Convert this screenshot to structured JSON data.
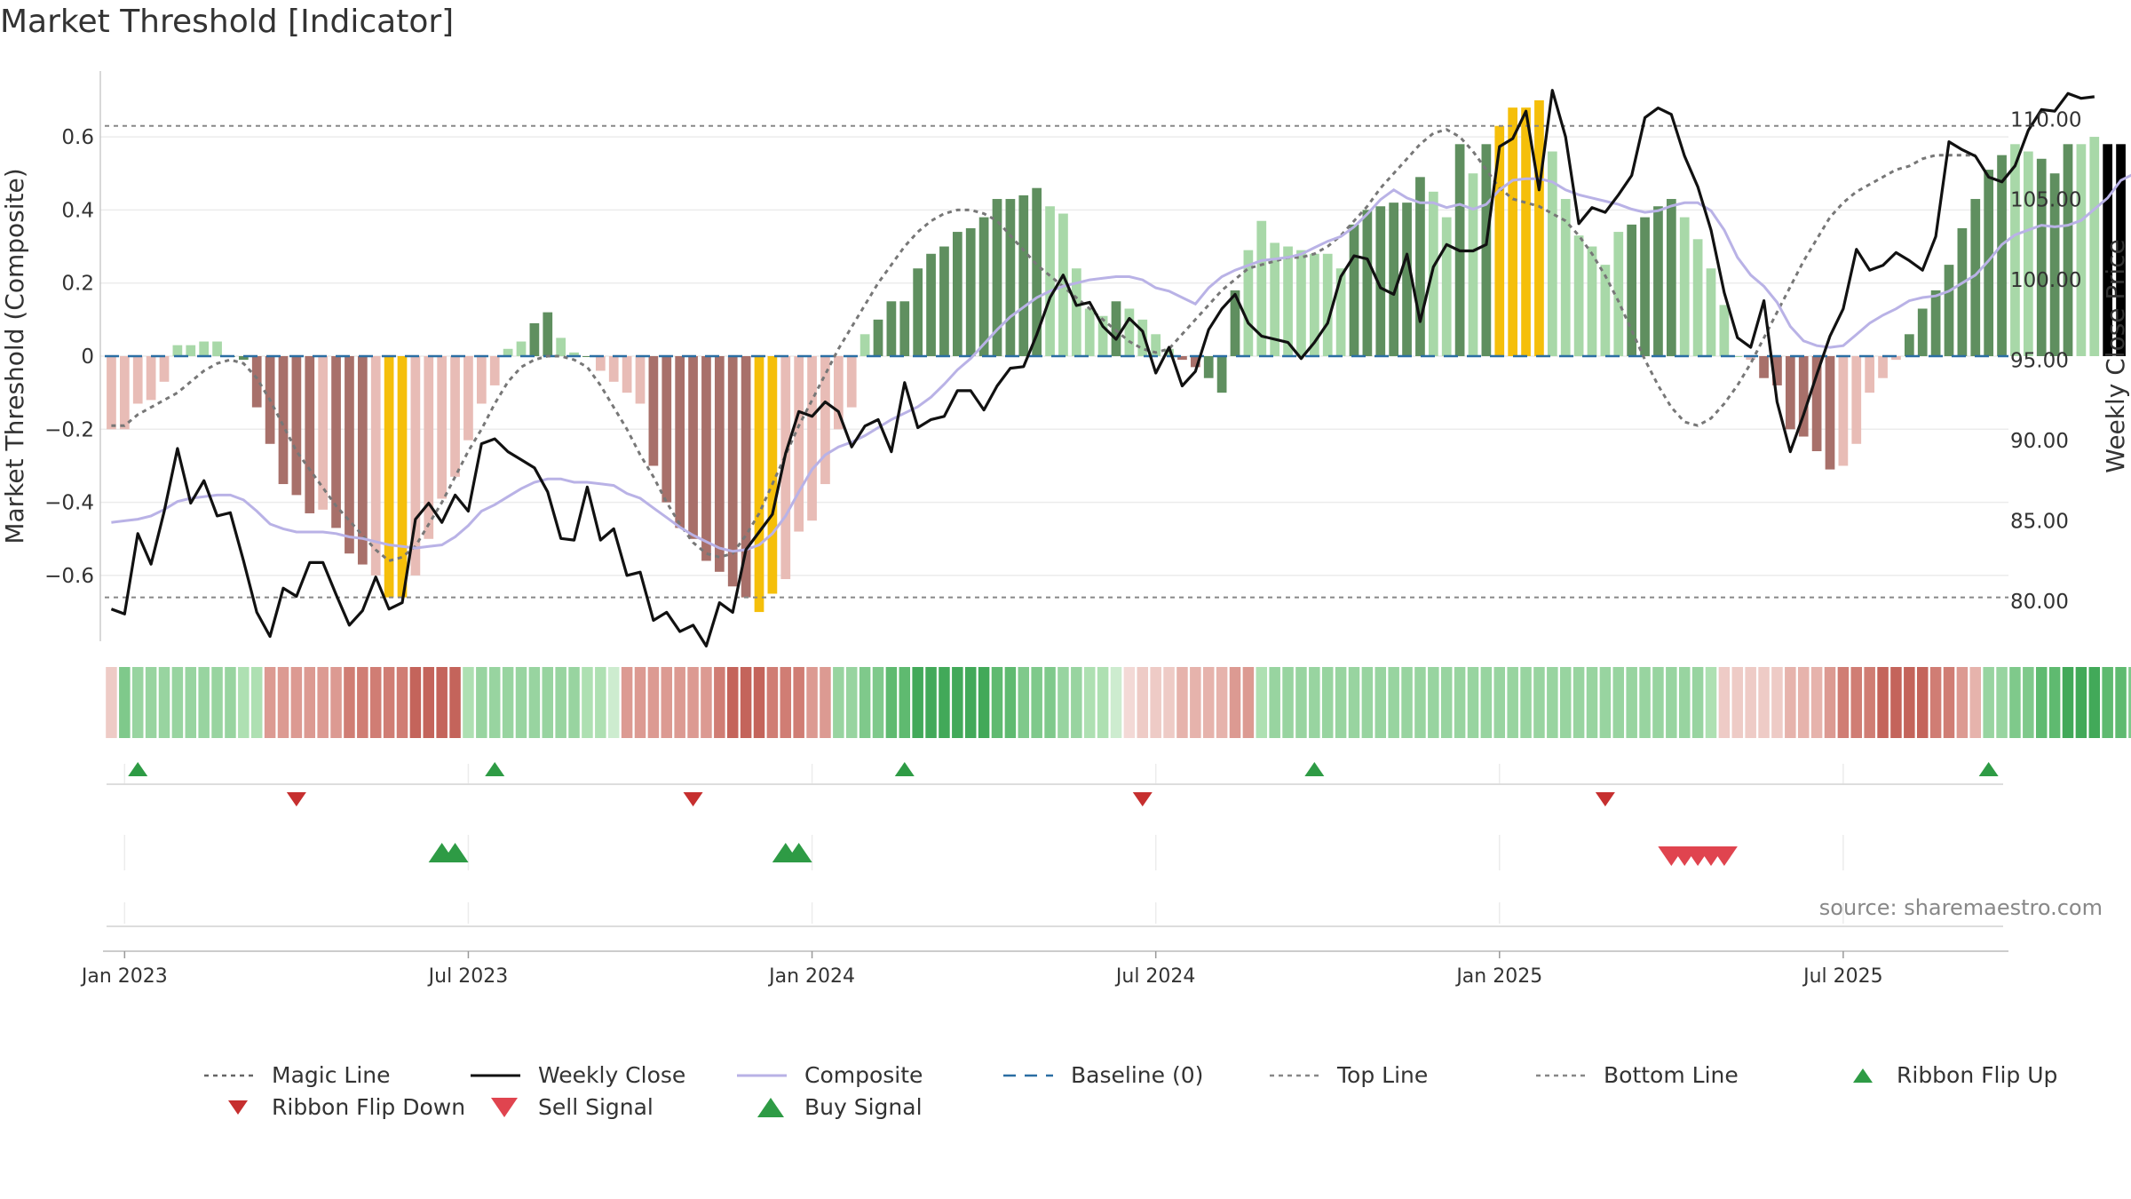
{
  "title": "Market Threshold [Indicator]",
  "source": "source: sharemaestro.com",
  "colors": {
    "bar_dark_green": "#5f8f5f",
    "bar_light_green": "#a8d8a8",
    "bar_dark_red": "#a8706a",
    "bar_light_red": "#e8bcb6",
    "bar_gold": "#f5bf0a",
    "close_line": "#111111",
    "composite_line": "#b9b2e6",
    "magic_line": "#777777",
    "baseline": "#2b6ea3",
    "threshold_line": "#888888",
    "buy": "#2e9b45",
    "sell": "#d63a3a"
  },
  "chart_data": {
    "type": "bar",
    "ylabel_left": "Market Threshold (Composite)",
    "ylabel_right": "Weekly Close Price",
    "left_ylim": [
      -0.78,
      0.78
    ],
    "right_ylim": [
      77.5,
      113
    ],
    "left_ticks": [
      "0.6",
      "0.4",
      "0.2",
      "0",
      "−0.2",
      "−0.4",
      "−0.6"
    ],
    "left_tick_values": [
      0.6,
      0.4,
      0.2,
      0,
      -0.2,
      -0.4,
      -0.6
    ],
    "right_ticks": [
      "110.00",
      "105.00",
      "100.00",
      "95.00",
      "90.00",
      "85.00",
      "80.00"
    ],
    "right_tick_values": [
      110,
      105,
      100,
      95,
      90,
      85,
      80
    ],
    "x_ticks": [
      "Jan 2023",
      "Jul 2023",
      "Jan 2024",
      "Jul 2024",
      "Jan 2025",
      "Jul 2025"
    ],
    "x_tick_weeks": [
      1.5,
      27.5,
      53.5,
      79.5,
      105.5,
      131.5
    ],
    "top_line": 0.63,
    "bottom_line": -0.66,
    "weeks": 144,
    "composite_bars": [
      -0.2,
      -0.2,
      -0.13,
      -0.12,
      -0.07,
      0.03,
      0.03,
      0.04,
      0.04,
      0,
      -0.01,
      -0.14,
      -0.24,
      -0.35,
      -0.38,
      -0.43,
      -0.42,
      -0.47,
      -0.54,
      -0.57,
      -0.6,
      -0.66,
      -0.66,
      -0.6,
      -0.5,
      -0.39,
      -0.33,
      -0.23,
      -0.13,
      -0.08,
      0.02,
      0.04,
      0.09,
      0.12,
      0.05,
      0.01,
      0,
      -0.04,
      -0.07,
      -0.1,
      -0.13,
      -0.3,
      -0.4,
      -0.47,
      -0.5,
      -0.56,
      -0.59,
      -0.63,
      -0.66,
      -0.7,
      -0.65,
      -0.61,
      -0.48,
      -0.45,
      -0.35,
      -0.2,
      -0.14,
      0.06,
      0.1,
      0.15,
      0.15,
      0.24,
      0.28,
      0.3,
      0.34,
      0.35,
      0.38,
      0.43,
      0.43,
      0.44,
      0.46,
      0.41,
      0.39,
      0.24,
      0.13,
      0.11,
      0.15,
      0.13,
      0.1,
      0.06,
      0.02,
      -0.01,
      -0.03,
      -0.06,
      -0.1,
      0.18,
      0.29,
      0.37,
      0.31,
      0.3,
      0.29,
      0.28,
      0.28,
      0.24,
      0.36,
      0.4,
      0.41,
      0.42,
      0.42,
      0.49,
      0.45,
      0.38,
      0.58,
      0.5,
      0.58,
      0.63,
      0.68,
      0.68,
      0.7,
      0.56,
      0.43,
      0.33,
      0.3,
      0.25,
      0.34,
      0.36,
      0.38,
      0.41,
      0.43,
      0.38,
      0.32,
      0.24,
      0.14,
      0,
      -0.01,
      -0.06,
      -0.08,
      -0.2,
      -0.22,
      -0.26,
      -0.31,
      -0.3,
      -0.24,
      -0.1,
      -0.06,
      -0.01,
      0.06,
      0.13,
      0.18,
      0.25,
      0.35,
      0.43,
      0.51,
      0.55,
      0.58,
      0.56,
      0.54,
      0.5,
      0.58,
      0.58,
      0.6,
      0.58,
      0.58
    ],
    "bar_styles": [
      "lr",
      "lr",
      "lr",
      "lr",
      "lr",
      "lg",
      "lg",
      "lg",
      "lg",
      "dg",
      "dg",
      "dr",
      "dr",
      "dr",
      "dr",
      "dr",
      "lr",
      "dr",
      "dr",
      "dr",
      "lr",
      "au",
      "au",
      "lr",
      "lr",
      "lr",
      "lr",
      "lr",
      "lr",
      "lr",
      "lg",
      "lg",
      "dg",
      "dg",
      "lg",
      "lg",
      "dg",
      "lr",
      "lr",
      "lr",
      "lr",
      "dr",
      "dr",
      "dr",
      "dr",
      "dr",
      "dr",
      "dr",
      "dr",
      "au",
      "au",
      "lr",
      "lr",
      "lr",
      "lr",
      "lr",
      "lr",
      "lg",
      "dg",
      "dg",
      "dg",
      "dg",
      "dg",
      "dg",
      "dg",
      "dg",
      "dg",
      "dg",
      "dg",
      "dg",
      "dg",
      "lg",
      "lg",
      "lg",
      "lg",
      "lg",
      "dg",
      "lg",
      "lg",
      "lg",
      "lg",
      "dr",
      "dr",
      "dg",
      "dg",
      "dg",
      "lg",
      "lg",
      "lg",
      "lg",
      "lg",
      "lg",
      "lg",
      "lg",
      "dg",
      "dg",
      "dg",
      "dg",
      "dg",
      "dg",
      "lg",
      "lg",
      "dg",
      "lg",
      "dg",
      "au",
      "au",
      "au",
      "au",
      "lg",
      "lg",
      "lg",
      "lg",
      "lg",
      "lg",
      "dg",
      "dg",
      "dg",
      "dg",
      "lg",
      "lg",
      "lg",
      "lg",
      "lg",
      "lr",
      "dr",
      "dr",
      "dr",
      "dr",
      "dr",
      "dr",
      "lr",
      "lr",
      "lr",
      "lr",
      "lr",
      "dg",
      "dg",
      "dg",
      "dg",
      "dg",
      "dg",
      "dg",
      "dg",
      "lg",
      "lg",
      "dg",
      "dg",
      "dg",
      "lg",
      "lg"
    ],
    "weekly_close": [
      79.5,
      79.2,
      84.2,
      82.3,
      85.6,
      89.5,
      86.1,
      87.5,
      85.3,
      85.5,
      82.5,
      79.3,
      77.8,
      80.8,
      80.3,
      82.4,
      82.4,
      80.4,
      78.5,
      79.4,
      81.5,
      79.5,
      79.9,
      85.1,
      86.1,
      84.9,
      86.6,
      85.6,
      89.8,
      90.1,
      89.3,
      88.8,
      88.3,
      86.8,
      83.9,
      83.8,
      87.1,
      83.8,
      84.5,
      81.6,
      81.8,
      78.8,
      79.3,
      78.1,
      78.5,
      77.2,
      79.9,
      79.3,
      83.2,
      84.3,
      85.4,
      89.2,
      91.8,
      91.5,
      92.4,
      91.8,
      89.6,
      90.9,
      91.3,
      89.3,
      93.6,
      90.8,
      91.3,
      91.5,
      93.1,
      93.1,
      91.9,
      93.4,
      94.5,
      94.6,
      96.6,
      98.9,
      100.3,
      98.4,
      98.6,
      97.1,
      96.3,
      97.6,
      96.8,
      94.2,
      95.8,
      93.4,
      94.3,
      96.9,
      98.2,
      99.1,
      97.3,
      96.5,
      96.3,
      96.1,
      95.1,
      96.1,
      97.3,
      100.2,
      101.5,
      101.3,
      99.5,
      99.1,
      101.6,
      97.4,
      100.8,
      102.2,
      101.8,
      101.8,
      102.2,
      108.3,
      108.8,
      110.5,
      105.6,
      111.8,
      108.9,
      103.5,
      104.5,
      104.2,
      105.3,
      106.5,
      110.1,
      110.7,
      110.3,
      107.7,
      105.8,
      103.1,
      99.2,
      96.4,
      95.8,
      98.7,
      92.4,
      89.3,
      91.6,
      94.1,
      96.5,
      98.2,
      101.9,
      100.6,
      100.9,
      101.7,
      101.2,
      100.6,
      102.7,
      108.6,
      108.1,
      107.7,
      106.4,
      106.1,
      107.1,
      109.3,
      110.6,
      110.5,
      111.6,
      111.3,
      111.4
    ],
    "composite_line": [
      84.9,
      85.0,
      85.1,
      85.3,
      85.7,
      86.2,
      86.4,
      86.5,
      86.6,
      86.6,
      86.3,
      85.6,
      84.8,
      84.5,
      84.3,
      84.3,
      84.3,
      84.2,
      84.0,
      83.9,
      83.7,
      83.5,
      83.4,
      83.3,
      83.4,
      83.5,
      84.0,
      84.7,
      85.6,
      86.0,
      86.5,
      87.0,
      87.4,
      87.6,
      87.6,
      87.4,
      87.4,
      87.3,
      87.2,
      86.7,
      86.4,
      85.8,
      85.2,
      84.6,
      84.1,
      83.7,
      83.3,
      83.1,
      83.2,
      83.5,
      84.2,
      85.3,
      86.8,
      88.2,
      89.1,
      89.6,
      89.9,
      90.3,
      90.8,
      91.3,
      91.7,
      92.1,
      92.7,
      93.5,
      94.4,
      95.1,
      96.0,
      96.9,
      97.7,
      98.3,
      98.9,
      99.3,
      99.6,
      99.8,
      100.0,
      100.1,
      100.2,
      100.2,
      100.0,
      99.5,
      99.3,
      98.9,
      98.5,
      99.5,
      100.2,
      100.6,
      100.9,
      101.2,
      101.3,
      101.4,
      101.6,
      102.0,
      102.4,
      102.7,
      103.3,
      104.1,
      105.0,
      105.6,
      105.1,
      104.8,
      104.8,
      104.5,
      104.7,
      104.4,
      104.7,
      105.6,
      106.2,
      106.3,
      106.3,
      106.1,
      105.6,
      105.3,
      105.1,
      104.9,
      104.7,
      104.4,
      104.2,
      104.3,
      104.6,
      104.8,
      104.8,
      104.3,
      103.1,
      101.4,
      100.3,
      99.6,
      98.6,
      97.1,
      96.2,
      95.9,
      95.8,
      95.9,
      96.6,
      97.3,
      97.8,
      98.2,
      98.7,
      98.9,
      99.0,
      99.3,
      99.8,
      100.3,
      101.2,
      102.2,
      102.8,
      103.1,
      103.4,
      103.3,
      103.4,
      103.7,
      104.4,
      105.1,
      106.2,
      106.6
    ],
    "magic_line": [
      -0.19,
      -0.19,
      -0.16,
      -0.14,
      -0.12,
      -0.1,
      -0.07,
      -0.04,
      -0.02,
      -0.01,
      -0.02,
      -0.06,
      -0.12,
      -0.19,
      -0.26,
      -0.31,
      -0.36,
      -0.41,
      -0.45,
      -0.49,
      -0.53,
      -0.56,
      -0.55,
      -0.52,
      -0.46,
      -0.4,
      -0.33,
      -0.26,
      -0.2,
      -0.13,
      -0.07,
      -0.03,
      -0.01,
      0,
      0,
      -0.01,
      -0.03,
      -0.08,
      -0.14,
      -0.2,
      -0.27,
      -0.33,
      -0.4,
      -0.46,
      -0.51,
      -0.54,
      -0.55,
      -0.54,
      -0.49,
      -0.43,
      -0.35,
      -0.27,
      -0.19,
      -0.12,
      -0.05,
      0.02,
      0.08,
      0.14,
      0.2,
      0.25,
      0.3,
      0.34,
      0.37,
      0.39,
      0.4,
      0.4,
      0.39,
      0.37,
      0.33,
      0.29,
      0.25,
      0.22,
      0.19,
      0.16,
      0.13,
      0.1,
      0.07,
      0.04,
      0.02,
      0.01,
      0.02,
      0.06,
      0.1,
      0.14,
      0.18,
      0.21,
      0.24,
      0.25,
      0.26,
      0.27,
      0.27,
      0.28,
      0.3,
      0.33,
      0.37,
      0.41,
      0.46,
      0.5,
      0.54,
      0.58,
      0.61,
      0.62,
      0.6,
      0.56,
      0.51,
      0.46,
      0.43,
      0.42,
      0.41,
      0.39,
      0.37,
      0.33,
      0.28,
      0.22,
      0.15,
      0.07,
      -0.01,
      -0.08,
      -0.14,
      -0.18,
      -0.19,
      -0.17,
      -0.13,
      -0.08,
      -0.02,
      0.05,
      0.12,
      0.19,
      0.26,
      0.32,
      0.38,
      0.42,
      0.45,
      0.47,
      0.49,
      0.51,
      0.52,
      0.54,
      0.55,
      0.55,
      0.55,
      0.55
    ]
  },
  "ribbon": {
    "styles": [
      "r2",
      "g4",
      "g3",
      "g3",
      "g3",
      "g3",
      "g3",
      "g3",
      "g3",
      "g3",
      "g2",
      "g2",
      "r4",
      "r4",
      "r4",
      "r4",
      "r4",
      "r4",
      "r5",
      "r5",
      "r5",
      "r5",
      "r5",
      "r6",
      "r6",
      "r6",
      "r6",
      "g2",
      "g3",
      "g3",
      "g3",
      "g3",
      "g3",
      "g3",
      "g3",
      "g3",
      "g2",
      "g2",
      "g1",
      "r4",
      "r4",
      "r4",
      "r4",
      "r4",
      "r4",
      "r4",
      "r5",
      "r6",
      "r6",
      "r6",
      "r5",
      "r5",
      "r5",
      "r4",
      "r4",
      "g3",
      "g3",
      "g4",
      "g4",
      "g5",
      "g5",
      "g6",
      "g6",
      "g6",
      "g6",
      "g6",
      "g6",
      "g5",
      "g5",
      "g4",
      "g4",
      "g4",
      "g3",
      "g3",
      "g2",
      "g2",
      "g1",
      "r1",
      "r2",
      "r2",
      "r2",
      "r3",
      "r3",
      "r3",
      "r3",
      "r4",
      "r4",
      "g2",
      "g3",
      "g3",
      "g3",
      "g3",
      "g3",
      "g3",
      "g3",
      "g3",
      "g3",
      "g3",
      "g3",
      "g3",
      "g3",
      "g3",
      "g3",
      "g3",
      "g3",
      "g3",
      "g3",
      "g3",
      "g3",
      "g3",
      "g3",
      "g3",
      "g3",
      "g3",
      "g3",
      "g3",
      "g3",
      "g3",
      "g3",
      "g3",
      "g3",
      "g2",
      "r2",
      "r2",
      "r2",
      "r2",
      "r2",
      "r3",
      "r3",
      "r3",
      "r4",
      "r5",
      "r5",
      "r5",
      "r6",
      "r6",
      "r6",
      "r6",
      "r5",
      "r5",
      "r4",
      "r3",
      "g3",
      "g3",
      "g4",
      "g4",
      "g5",
      "g5",
      "g6",
      "g6",
      "g6",
      "g5",
      "g5",
      "g4",
      "g4",
      "g3",
      "g3"
    ]
  },
  "signals": {
    "ribbon_flip_up": [
      2,
      29,
      60,
      91,
      142
    ],
    "ribbon_flip_down": [
      14,
      44,
      78,
      113
    ],
    "buy": [
      25,
      26,
      51,
      52
    ],
    "sell": [
      118,
      119,
      120,
      121,
      122
    ]
  },
  "legend": [
    {
      "label": "Magic Line",
      "kind": "dotted",
      "color": "#666666"
    },
    {
      "label": "Weekly Close",
      "kind": "solid",
      "color": "#111111"
    },
    {
      "label": "Composite",
      "kind": "solid",
      "color": "#b9b2e6"
    },
    {
      "label": "Baseline (0)",
      "kind": "dashed",
      "color": "#2b6ea3"
    },
    {
      "label": "Top Line",
      "kind": "dotted",
      "color": "#888888"
    },
    {
      "label": "Bottom Line",
      "kind": "dotted",
      "color": "#888888"
    },
    {
      "label": "Ribbon Flip Up",
      "kind": "tri-up",
      "color": "#2e9b45"
    },
    {
      "label": "Ribbon Flip Down",
      "kind": "tri-down",
      "color": "#c62f2f"
    },
    {
      "label": "Sell Signal",
      "kind": "tri-down-big",
      "color": "#e0444f"
    },
    {
      "label": "Buy Signal",
      "kind": "tri-up-big",
      "color": "#2e9b45"
    }
  ]
}
